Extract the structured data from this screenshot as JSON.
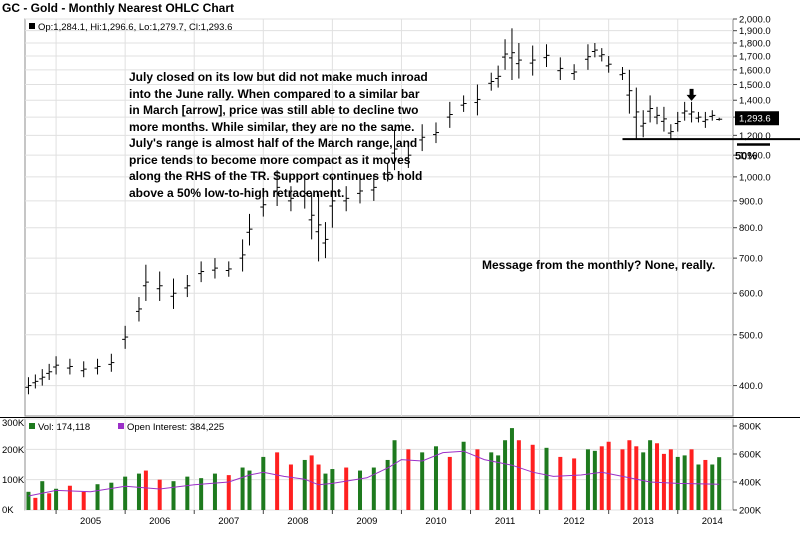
{
  "chart_data": {
    "type": "ohlc",
    "title": "GC - Gold - Monthly Nearest OHLC Chart",
    "legend": {
      "ohlc_readout": "Op:1,284.1, Hi:1,296.6, Lo:1,279.7, Cl:1,293.6",
      "volume_readout": "Vol: 174,118",
      "oi_readout": "Open Interest: 384,225"
    },
    "last_price_label": "1,293.6",
    "price_axis": {
      "range": [
        350,
        2000
      ],
      "ticks": [
        400,
        500,
        600,
        700,
        800,
        900,
        1000,
        1100,
        1200,
        1300,
        1400,
        1500,
        1600,
        1700,
        1800,
        1900,
        2000
      ],
      "tick_labels": [
        "400.0",
        "500.0",
        "600.0",
        "700.0",
        "800.0",
        "900.0",
        "1,000.0",
        "1,100.0",
        "1,200.0",
        "1,300.0",
        "1,400.0",
        "1,500.0",
        "1,600.0",
        "1,700.0",
        "1,800.0",
        "1,900.0",
        "2,000.0"
      ],
      "scale": "log"
    },
    "volume_axis": {
      "range": [
        0,
        300000
      ],
      "ticks": [
        0,
        100000,
        200000,
        300000
      ],
      "tick_labels": [
        "0K",
        "100K",
        "200K",
        "300K"
      ]
    },
    "oi_axis": {
      "range": [
        200000,
        850000
      ],
      "ticks": [
        200000,
        400000,
        600000,
        800000
      ],
      "tick_labels": [
        "200K",
        "400K",
        "600K",
        "800K"
      ]
    },
    "x_axis": {
      "year_labels": [
        "2005",
        "2006",
        "2007",
        "2008",
        "2009",
        "2010",
        "2011",
        "2012",
        "2013",
        "2014"
      ],
      "year_ticks": [
        2005,
        2006,
        2007,
        2008,
        2009,
        2010,
        2011,
        2012,
        2013,
        2014
      ],
      "start": 2004.55,
      "end": 2014.8
    },
    "ohlc_points": [
      {
        "t": 2004.6,
        "h": 415,
        "l": 385
      },
      {
        "t": 2004.7,
        "h": 420,
        "l": 395
      },
      {
        "t": 2004.8,
        "h": 430,
        "l": 400
      },
      {
        "t": 2004.9,
        "h": 440,
        "l": 410
      },
      {
        "t": 2005.0,
        "h": 455,
        "l": 420
      },
      {
        "t": 2005.2,
        "h": 450,
        "l": 420
      },
      {
        "t": 2005.4,
        "h": 445,
        "l": 415
      },
      {
        "t": 2005.6,
        "h": 450,
        "l": 420
      },
      {
        "t": 2005.8,
        "h": 460,
        "l": 425
      },
      {
        "t": 2006.0,
        "h": 520,
        "l": 470
      },
      {
        "t": 2006.2,
        "h": 590,
        "l": 530
      },
      {
        "t": 2006.3,
        "h": 680,
        "l": 580
      },
      {
        "t": 2006.5,
        "h": 660,
        "l": 580
      },
      {
        "t": 2006.7,
        "h": 640,
        "l": 560
      },
      {
        "t": 2006.9,
        "h": 650,
        "l": 590
      },
      {
        "t": 2007.1,
        "h": 690,
        "l": 630
      },
      {
        "t": 2007.3,
        "h": 700,
        "l": 640
      },
      {
        "t": 2007.5,
        "h": 690,
        "l": 645
      },
      {
        "t": 2007.7,
        "h": 760,
        "l": 660
      },
      {
        "t": 2007.8,
        "h": 850,
        "l": 740
      },
      {
        "t": 2008.0,
        "h": 930,
        "l": 840
      },
      {
        "t": 2008.2,
        "h": 1030,
        "l": 880
      },
      {
        "t": 2008.4,
        "h": 960,
        "l": 860
      },
      {
        "t": 2008.6,
        "h": 990,
        "l": 870
      },
      {
        "t": 2008.7,
        "h": 930,
        "l": 760
      },
      {
        "t": 2008.8,
        "h": 930,
        "l": 690
      },
      {
        "t": 2008.9,
        "h": 820,
        "l": 700
      },
      {
        "t": 2009.0,
        "h": 1000,
        "l": 800
      },
      {
        "t": 2009.2,
        "h": 960,
        "l": 860
      },
      {
        "t": 2009.4,
        "h": 990,
        "l": 890
      },
      {
        "t": 2009.6,
        "h": 1010,
        "l": 900
      },
      {
        "t": 2009.8,
        "h": 1060,
        "l": 980
      },
      {
        "t": 2009.9,
        "h": 1230,
        "l": 1030
      },
      {
        "t": 2010.1,
        "h": 1160,
        "l": 1040
      },
      {
        "t": 2010.3,
        "h": 1260,
        "l": 1120
      },
      {
        "t": 2010.5,
        "h": 1270,
        "l": 1160
      },
      {
        "t": 2010.7,
        "h": 1390,
        "l": 1240
      },
      {
        "t": 2010.9,
        "h": 1430,
        "l": 1330
      },
      {
        "t": 2011.1,
        "h": 1500,
        "l": 1310
      },
      {
        "t": 2011.3,
        "h": 1580,
        "l": 1460
      },
      {
        "t": 2011.4,
        "h": 1630,
        "l": 1480
      },
      {
        "t": 2011.5,
        "h": 1830,
        "l": 1600
      },
      {
        "t": 2011.6,
        "h": 1920,
        "l": 1530
      },
      {
        "t": 2011.7,
        "h": 1800,
        "l": 1540
      },
      {
        "t": 2011.9,
        "h": 1780,
        "l": 1560
      },
      {
        "t": 2012.1,
        "h": 1790,
        "l": 1620
      },
      {
        "t": 2012.3,
        "h": 1690,
        "l": 1530
      },
      {
        "t": 2012.5,
        "h": 1640,
        "l": 1530
      },
      {
        "t": 2012.7,
        "h": 1790,
        "l": 1600
      },
      {
        "t": 2012.8,
        "h": 1800,
        "l": 1690
      },
      {
        "t": 2012.9,
        "h": 1760,
        "l": 1660
      },
      {
        "t": 2013.0,
        "h": 1700,
        "l": 1580
      },
      {
        "t": 2013.2,
        "h": 1620,
        "l": 1530
      },
      {
        "t": 2013.3,
        "h": 1600,
        "l": 1320
      },
      {
        "t": 2013.4,
        "h": 1480,
        "l": 1180
      },
      {
        "t": 2013.5,
        "h": 1340,
        "l": 1190
      },
      {
        "t": 2013.6,
        "h": 1430,
        "l": 1270
      },
      {
        "t": 2013.7,
        "h": 1360,
        "l": 1260
      },
      {
        "t": 2013.8,
        "h": 1360,
        "l": 1220
      },
      {
        "t": 2013.9,
        "h": 1260,
        "l": 1180
      },
      {
        "t": 2014.0,
        "h": 1330,
        "l": 1220
      },
      {
        "t": 2014.1,
        "h": 1390,
        "l": 1280
      },
      {
        "t": 2014.2,
        "h": 1390,
        "l": 1270
      },
      {
        "t": 2014.3,
        "h": 1330,
        "l": 1270
      },
      {
        "t": 2014.4,
        "h": 1330,
        "l": 1240
      },
      {
        "t": 2014.5,
        "h": 1340,
        "l": 1280
      },
      {
        "t": 2014.6,
        "h": 1296.6,
        "l": 1279.7
      }
    ],
    "support_level": 1180,
    "fifty_pct_level": 1153,
    "arrow_at": {
      "t": 2014.2,
      "price": 1415
    },
    "volume_bars_note": "approximate monthly volumes (green = up month, red = down month)",
    "volume_bars": [
      {
        "t": 2004.6,
        "v": 60000,
        "dir": "up"
      },
      {
        "t": 2004.7,
        "v": 40000,
        "dir": "down"
      },
      {
        "t": 2004.8,
        "v": 95000,
        "dir": "up"
      },
      {
        "t": 2004.9,
        "v": 55000,
        "dir": "down"
      },
      {
        "t": 2005.0,
        "v": 70000,
        "dir": "up"
      },
      {
        "t": 2005.2,
        "v": 80000,
        "dir": "down"
      },
      {
        "t": 2005.4,
        "v": 60000,
        "dir": "down"
      },
      {
        "t": 2005.6,
        "v": 85000,
        "dir": "up"
      },
      {
        "t": 2005.8,
        "v": 90000,
        "dir": "up"
      },
      {
        "t": 2006.0,
        "v": 110000,
        "dir": "up"
      },
      {
        "t": 2006.2,
        "v": 120000,
        "dir": "up"
      },
      {
        "t": 2006.3,
        "v": 130000,
        "dir": "down"
      },
      {
        "t": 2006.5,
        "v": 100000,
        "dir": "down"
      },
      {
        "t": 2006.7,
        "v": 95000,
        "dir": "up"
      },
      {
        "t": 2006.9,
        "v": 110000,
        "dir": "up"
      },
      {
        "t": 2007.1,
        "v": 105000,
        "dir": "up"
      },
      {
        "t": 2007.3,
        "v": 120000,
        "dir": "up"
      },
      {
        "t": 2007.5,
        "v": 115000,
        "dir": "down"
      },
      {
        "t": 2007.7,
        "v": 140000,
        "dir": "up"
      },
      {
        "t": 2007.8,
        "v": 130000,
        "dir": "up"
      },
      {
        "t": 2008.0,
        "v": 175000,
        "dir": "up"
      },
      {
        "t": 2008.2,
        "v": 190000,
        "dir": "down"
      },
      {
        "t": 2008.4,
        "v": 150000,
        "dir": "down"
      },
      {
        "t": 2008.6,
        "v": 165000,
        "dir": "up"
      },
      {
        "t": 2008.7,
        "v": 180000,
        "dir": "down"
      },
      {
        "t": 2008.8,
        "v": 150000,
        "dir": "down"
      },
      {
        "t": 2008.9,
        "v": 120000,
        "dir": "up"
      },
      {
        "t": 2009.0,
        "v": 135000,
        "dir": "up"
      },
      {
        "t": 2009.2,
        "v": 140000,
        "dir": "down"
      },
      {
        "t": 2009.4,
        "v": 130000,
        "dir": "up"
      },
      {
        "t": 2009.6,
        "v": 140000,
        "dir": "up"
      },
      {
        "t": 2009.8,
        "v": 165000,
        "dir": "up"
      },
      {
        "t": 2009.9,
        "v": 230000,
        "dir": "up"
      },
      {
        "t": 2010.1,
        "v": 200000,
        "dir": "down"
      },
      {
        "t": 2010.3,
        "v": 190000,
        "dir": "up"
      },
      {
        "t": 2010.5,
        "v": 210000,
        "dir": "up"
      },
      {
        "t": 2010.7,
        "v": 175000,
        "dir": "down"
      },
      {
        "t": 2010.9,
        "v": 225000,
        "dir": "up"
      },
      {
        "t": 2011.1,
        "v": 200000,
        "dir": "down"
      },
      {
        "t": 2011.3,
        "v": 190000,
        "dir": "up"
      },
      {
        "t": 2011.4,
        "v": 180000,
        "dir": "up"
      },
      {
        "t": 2011.5,
        "v": 230000,
        "dir": "up"
      },
      {
        "t": 2011.6,
        "v": 270000,
        "dir": "up"
      },
      {
        "t": 2011.7,
        "v": 230000,
        "dir": "down"
      },
      {
        "t": 2011.9,
        "v": 215000,
        "dir": "down"
      },
      {
        "t": 2012.1,
        "v": 205000,
        "dir": "up"
      },
      {
        "t": 2012.3,
        "v": 175000,
        "dir": "down"
      },
      {
        "t": 2012.5,
        "v": 170000,
        "dir": "down"
      },
      {
        "t": 2012.7,
        "v": 200000,
        "dir": "up"
      },
      {
        "t": 2012.8,
        "v": 195000,
        "dir": "up"
      },
      {
        "t": 2012.9,
        "v": 210000,
        "dir": "down"
      },
      {
        "t": 2013.0,
        "v": 225000,
        "dir": "down"
      },
      {
        "t": 2013.2,
        "v": 200000,
        "dir": "down"
      },
      {
        "t": 2013.3,
        "v": 230000,
        "dir": "down"
      },
      {
        "t": 2013.4,
        "v": 210000,
        "dir": "down"
      },
      {
        "t": 2013.5,
        "v": 190000,
        "dir": "up"
      },
      {
        "t": 2013.6,
        "v": 230000,
        "dir": "up"
      },
      {
        "t": 2013.7,
        "v": 220000,
        "dir": "down"
      },
      {
        "t": 2013.8,
        "v": 185000,
        "dir": "down"
      },
      {
        "t": 2013.9,
        "v": 200000,
        "dir": "down"
      },
      {
        "t": 2014.0,
        "v": 175000,
        "dir": "up"
      },
      {
        "t": 2014.1,
        "v": 180000,
        "dir": "up"
      },
      {
        "t": 2014.2,
        "v": 200000,
        "dir": "down"
      },
      {
        "t": 2014.3,
        "v": 150000,
        "dir": "up"
      },
      {
        "t": 2014.4,
        "v": 165000,
        "dir": "down"
      },
      {
        "t": 2014.5,
        "v": 150000,
        "dir": "up"
      },
      {
        "t": 2014.6,
        "v": 174118,
        "dir": "up"
      }
    ],
    "oi_line": [
      {
        "t": 2004.6,
        "v": 300000
      },
      {
        "t": 2005.0,
        "v": 340000
      },
      {
        "t": 2005.5,
        "v": 330000
      },
      {
        "t": 2006.0,
        "v": 370000
      },
      {
        "t": 2006.5,
        "v": 350000
      },
      {
        "t": 2007.0,
        "v": 380000
      },
      {
        "t": 2007.5,
        "v": 400000
      },
      {
        "t": 2007.8,
        "v": 450000
      },
      {
        "t": 2008.0,
        "v": 470000
      },
      {
        "t": 2008.3,
        "v": 440000
      },
      {
        "t": 2008.6,
        "v": 420000
      },
      {
        "t": 2008.8,
        "v": 380000
      },
      {
        "t": 2009.0,
        "v": 390000
      },
      {
        "t": 2009.5,
        "v": 430000
      },
      {
        "t": 2009.8,
        "v": 500000
      },
      {
        "t": 2010.0,
        "v": 560000
      },
      {
        "t": 2010.3,
        "v": 550000
      },
      {
        "t": 2010.6,
        "v": 610000
      },
      {
        "t": 2010.9,
        "v": 620000
      },
      {
        "t": 2011.2,
        "v": 560000
      },
      {
        "t": 2011.6,
        "v": 520000
      },
      {
        "t": 2011.9,
        "v": 470000
      },
      {
        "t": 2012.2,
        "v": 440000
      },
      {
        "t": 2012.6,
        "v": 450000
      },
      {
        "t": 2012.9,
        "v": 470000
      },
      {
        "t": 2013.2,
        "v": 440000
      },
      {
        "t": 2013.6,
        "v": 400000
      },
      {
        "t": 2014.0,
        "v": 390000
      },
      {
        "t": 2014.6,
        "v": 384225
      }
    ]
  },
  "annotations": {
    "commentary": "July closed on its low but did not make much inroad\ninto the June rally.  When compared to a similar bar\nin March [arrow], price was still able to decline two\nmore months.  While similar, they are no the same.\nJuly's range is almost half of the March range, and\nprice tends to become more compact as it moves\nalong the RHS of the TR.  Support continues to hold\nabove a 50% low-to-high retracement.",
    "message": "Message from the monthly?  None, really.",
    "fifty_pct_label": "50%"
  },
  "colors": {
    "up_volume": "#1e7a1e",
    "down_volume": "#ff2020",
    "oi_line": "#9b30c8",
    "price_bar": "#000000",
    "grid": "#e0e0e0",
    "last_price_box": "#000000"
  }
}
